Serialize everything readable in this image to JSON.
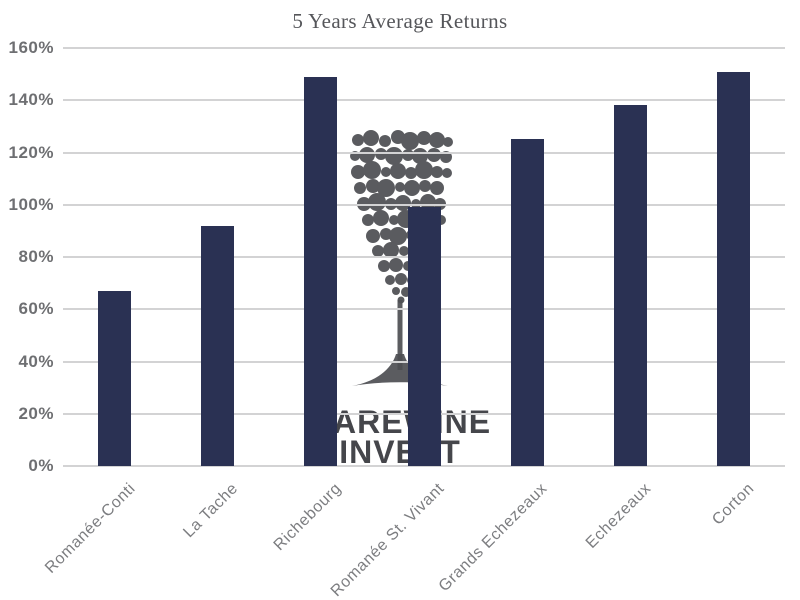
{
  "chart_data": {
    "type": "bar",
    "title": "5 Years Average Returns",
    "categories": [
      "Romanée-Conti",
      "La Tache",
      "Richebourg",
      "Romanée St. Vivant",
      "Grands Echezeaux",
      "Echezeaux",
      "Corton"
    ],
    "values": [
      67,
      92,
      149,
      99,
      125,
      138,
      151
    ],
    "value_unit": "%",
    "xlabel": "",
    "ylabel": "",
    "ylim": [
      0,
      160
    ],
    "yticks": [
      0,
      20,
      40,
      60,
      80,
      100,
      120,
      140,
      160
    ],
    "ytick_suffix": "%",
    "grid": "horizontal",
    "legend_position": "none",
    "bar_color": "#2a3153",
    "gridline_color": "#d3d3d4",
    "title_color": "#55565a",
    "ytick_color": "#6e6f72",
    "xtick_color": "#7c7d80"
  },
  "watermark": {
    "line1": "RAREWINE",
    "line2": "INVEST",
    "color": "#45464b"
  }
}
